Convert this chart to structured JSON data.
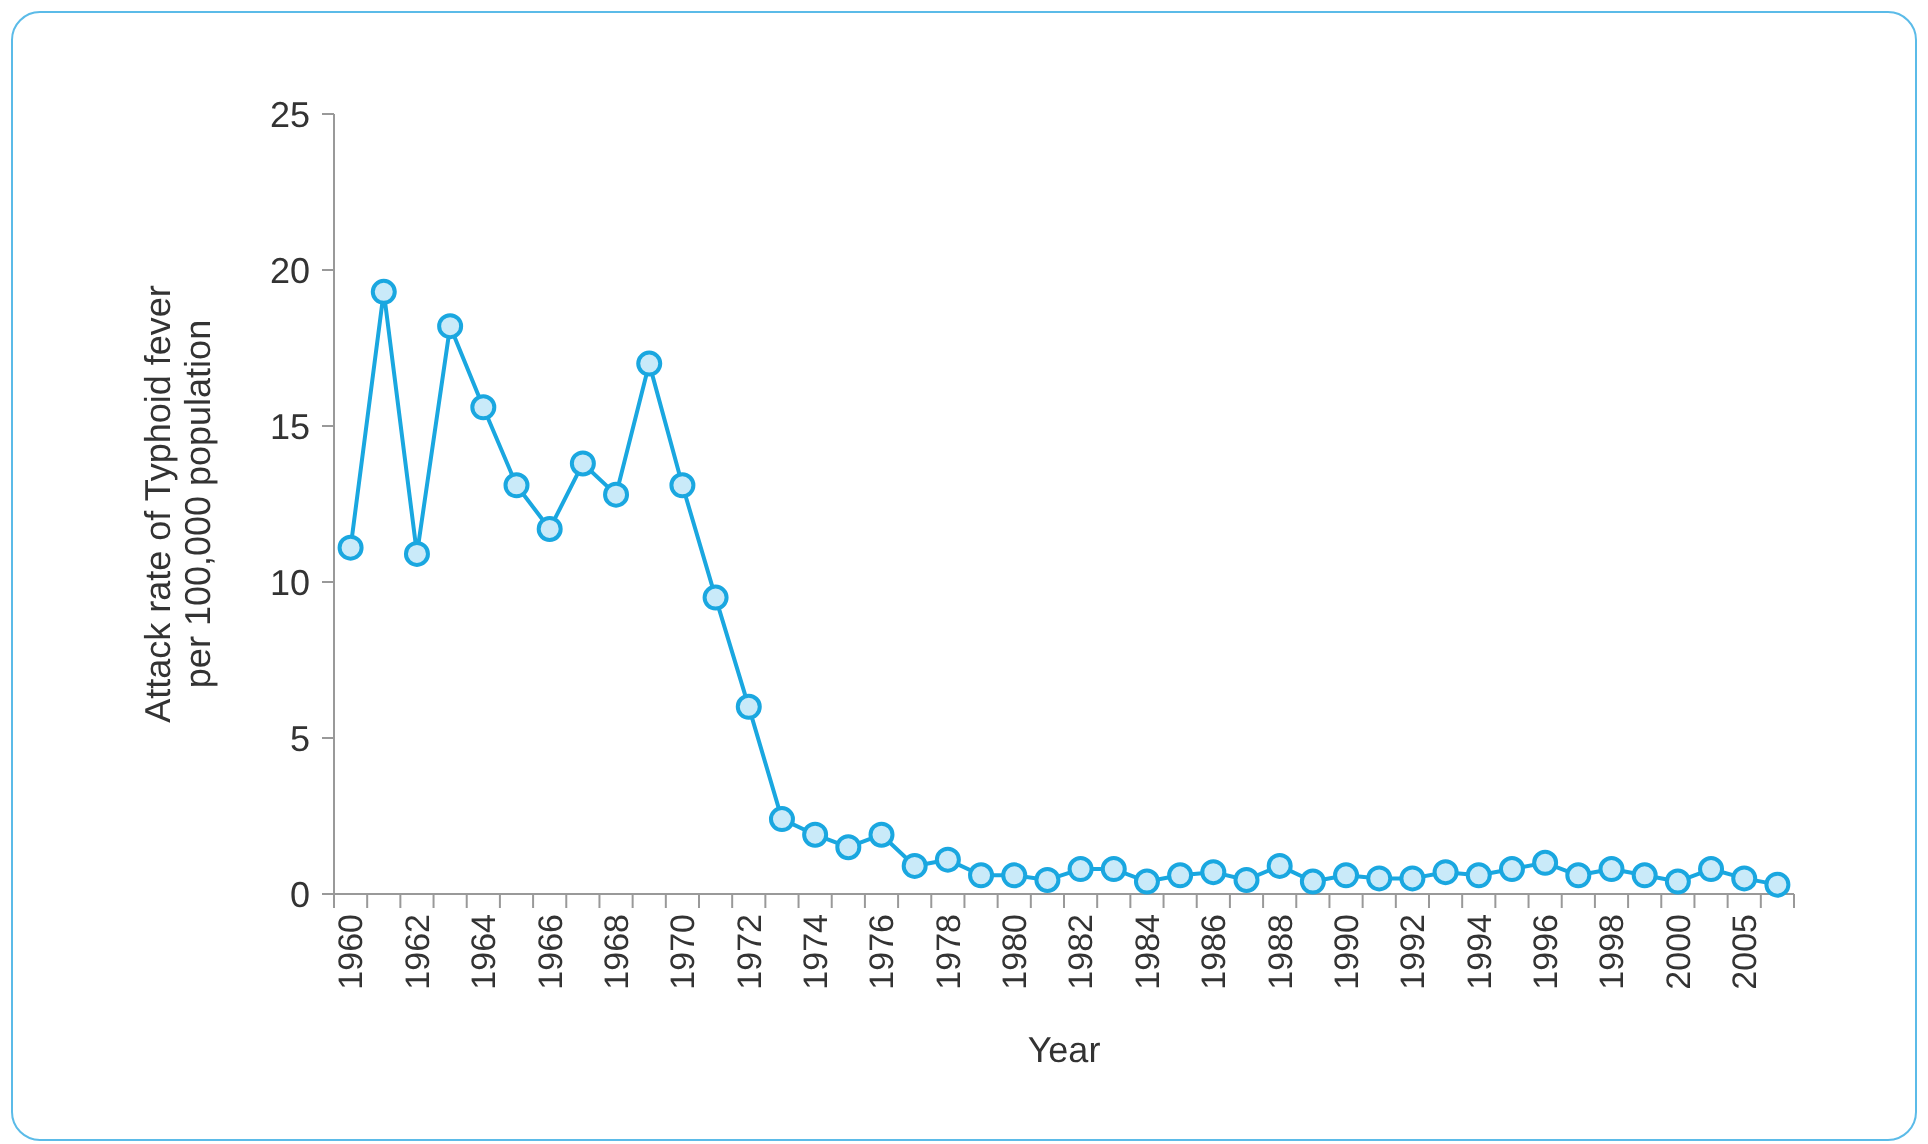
{
  "chart_data": {
    "type": "line",
    "xlabel": "Year",
    "ylabel": "Attack rate of Typhoid fever\nper 100,000 population",
    "categories": [
      "1960",
      null,
      "1962",
      null,
      "1964",
      null,
      "1966",
      null,
      "1968",
      null,
      "1970",
      null,
      "1972",
      null,
      "1974",
      null,
      "1976",
      null,
      "1978",
      null,
      "1980",
      null,
      "1982",
      null,
      "1984",
      null,
      "1986",
      null,
      "1988",
      null,
      "1990",
      null,
      "1992",
      null,
      "1994",
      null,
      "1996",
      null,
      "1998",
      null,
      "2000",
      null,
      "2005",
      null
    ],
    "series": [
      {
        "color": "#1aa7e0",
        "values": [
          11.1,
          19.3,
          10.9,
          18.2,
          15.6,
          13.1,
          11.7,
          13.8,
          12.8,
          17.0,
          13.1,
          9.5,
          6.0,
          2.4,
          1.9,
          1.5,
          1.9,
          0.9,
          1.1,
          0.6,
          0.6,
          0.45,
          0.8,
          0.8,
          0.4,
          0.6,
          0.7,
          0.45,
          0.9,
          0.4,
          0.6,
          0.5,
          0.5,
          0.7,
          0.6,
          0.8,
          1.0,
          0.6,
          0.8,
          0.6,
          0.4,
          0.8,
          0.5,
          0.3
        ]
      }
    ],
    "ylim": [
      0,
      25
    ],
    "yticks": [
      0,
      5,
      10,
      15,
      20,
      25
    ],
    "grid": false,
    "marker": "circle",
    "line_style": "solid"
  }
}
